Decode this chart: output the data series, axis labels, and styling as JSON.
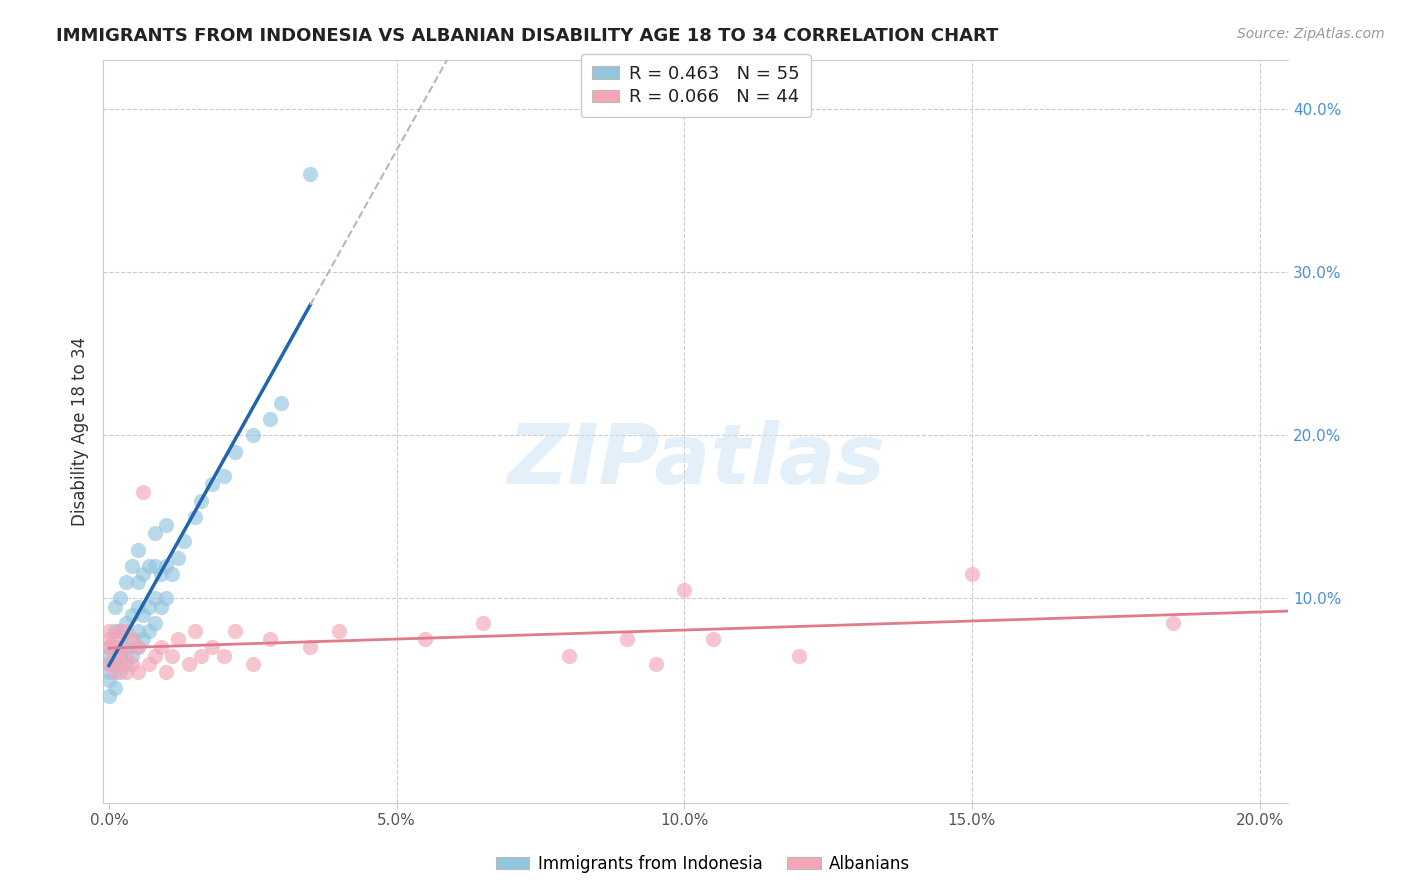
{
  "title": "IMMIGRANTS FROM INDONESIA VS ALBANIAN DISABILITY AGE 18 TO 34 CORRELATION CHART",
  "source": "Source: ZipAtlas.com",
  "ylabel": "Disability Age 18 to 34",
  "xlim": [
    -0.001,
    0.205
  ],
  "ylim": [
    -0.025,
    0.43
  ],
  "xtick_labels": [
    "0.0%",
    "5.0%",
    "10.0%",
    "15.0%",
    "20.0%"
  ],
  "legend_labels": [
    "Immigrants from Indonesia",
    "Albanians"
  ],
  "blue_color": "#92c5de",
  "pink_color": "#f4a6b8",
  "line_blue": "#2166ac",
  "line_pink": "#e07b8c",
  "watermark": "ZIPatlas",
  "indonesia_x": [
    0.0,
    0.0,
    0.0,
    0.0,
    0.0,
    0.0,
    0.001,
    0.001,
    0.001,
    0.001,
    0.001,
    0.002,
    0.002,
    0.002,
    0.002,
    0.003,
    0.003,
    0.003,
    0.003,
    0.004,
    0.004,
    0.004,
    0.004,
    0.005,
    0.005,
    0.005,
    0.005,
    0.005,
    0.006,
    0.006,
    0.006,
    0.007,
    0.007,
    0.007,
    0.008,
    0.008,
    0.008,
    0.008,
    0.009,
    0.009,
    0.01,
    0.01,
    0.01,
    0.011,
    0.012,
    0.013,
    0.015,
    0.016,
    0.018,
    0.02,
    0.022,
    0.025,
    0.028,
    0.03,
    0.035
  ],
  "indonesia_y": [
    0.05,
    0.055,
    0.06,
    0.065,
    0.07,
    0.04,
    0.045,
    0.06,
    0.07,
    0.08,
    0.095,
    0.055,
    0.065,
    0.08,
    0.1,
    0.06,
    0.07,
    0.085,
    0.11,
    0.065,
    0.075,
    0.09,
    0.12,
    0.07,
    0.08,
    0.095,
    0.11,
    0.13,
    0.075,
    0.09,
    0.115,
    0.08,
    0.095,
    0.12,
    0.085,
    0.1,
    0.12,
    0.14,
    0.095,
    0.115,
    0.1,
    0.12,
    0.145,
    0.115,
    0.125,
    0.135,
    0.15,
    0.16,
    0.17,
    0.175,
    0.19,
    0.2,
    0.21,
    0.22,
    0.36
  ],
  "albanian_x": [
    0.0,
    0.0,
    0.0,
    0.0,
    0.001,
    0.001,
    0.001,
    0.002,
    0.002,
    0.002,
    0.003,
    0.003,
    0.003,
    0.004,
    0.004,
    0.005,
    0.005,
    0.006,
    0.007,
    0.008,
    0.009,
    0.01,
    0.011,
    0.012,
    0.014,
    0.015,
    0.016,
    0.018,
    0.02,
    0.022,
    0.025,
    0.028,
    0.035,
    0.04,
    0.055,
    0.065,
    0.08,
    0.09,
    0.095,
    0.1,
    0.105,
    0.12,
    0.15,
    0.185
  ],
  "albanian_y": [
    0.06,
    0.07,
    0.075,
    0.08,
    0.055,
    0.065,
    0.075,
    0.06,
    0.07,
    0.08,
    0.055,
    0.065,
    0.08,
    0.06,
    0.075,
    0.055,
    0.07,
    0.165,
    0.06,
    0.065,
    0.07,
    0.055,
    0.065,
    0.075,
    0.06,
    0.08,
    0.065,
    0.07,
    0.065,
    0.08,
    0.06,
    0.075,
    0.07,
    0.08,
    0.075,
    0.085,
    0.065,
    0.075,
    0.06,
    0.105,
    0.075,
    0.065,
    0.115,
    0.085
  ]
}
